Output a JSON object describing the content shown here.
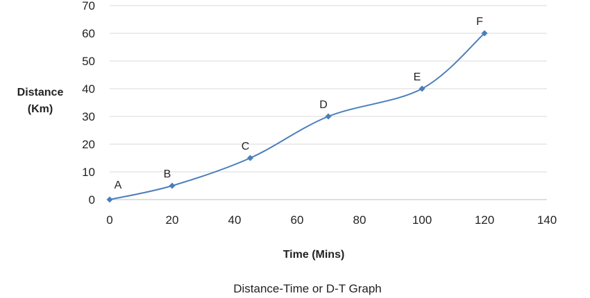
{
  "chart_data": {
    "type": "line",
    "title": "Distance-Time or D-T Graph",
    "xlabel": "Time (Mins)",
    "ylabel_lines": [
      "Distance",
      "(Km)"
    ],
    "xlim": [
      0,
      140
    ],
    "ylim": [
      0,
      70
    ],
    "x_ticks": [
      0,
      20,
      40,
      60,
      80,
      100,
      120,
      140
    ],
    "y_ticks": [
      0,
      10,
      20,
      30,
      40,
      50,
      60,
      70
    ],
    "grid": true,
    "series": [
      {
        "x": [
          0,
          20,
          45,
          70,
          100,
          120
        ],
        "y": [
          0,
          5,
          15,
          30,
          40,
          60
        ],
        "point_labels": [
          "A",
          "B",
          "C",
          "D",
          "E",
          "F"
        ],
        "color": "#4a7ebb",
        "smooth": true
      }
    ]
  }
}
